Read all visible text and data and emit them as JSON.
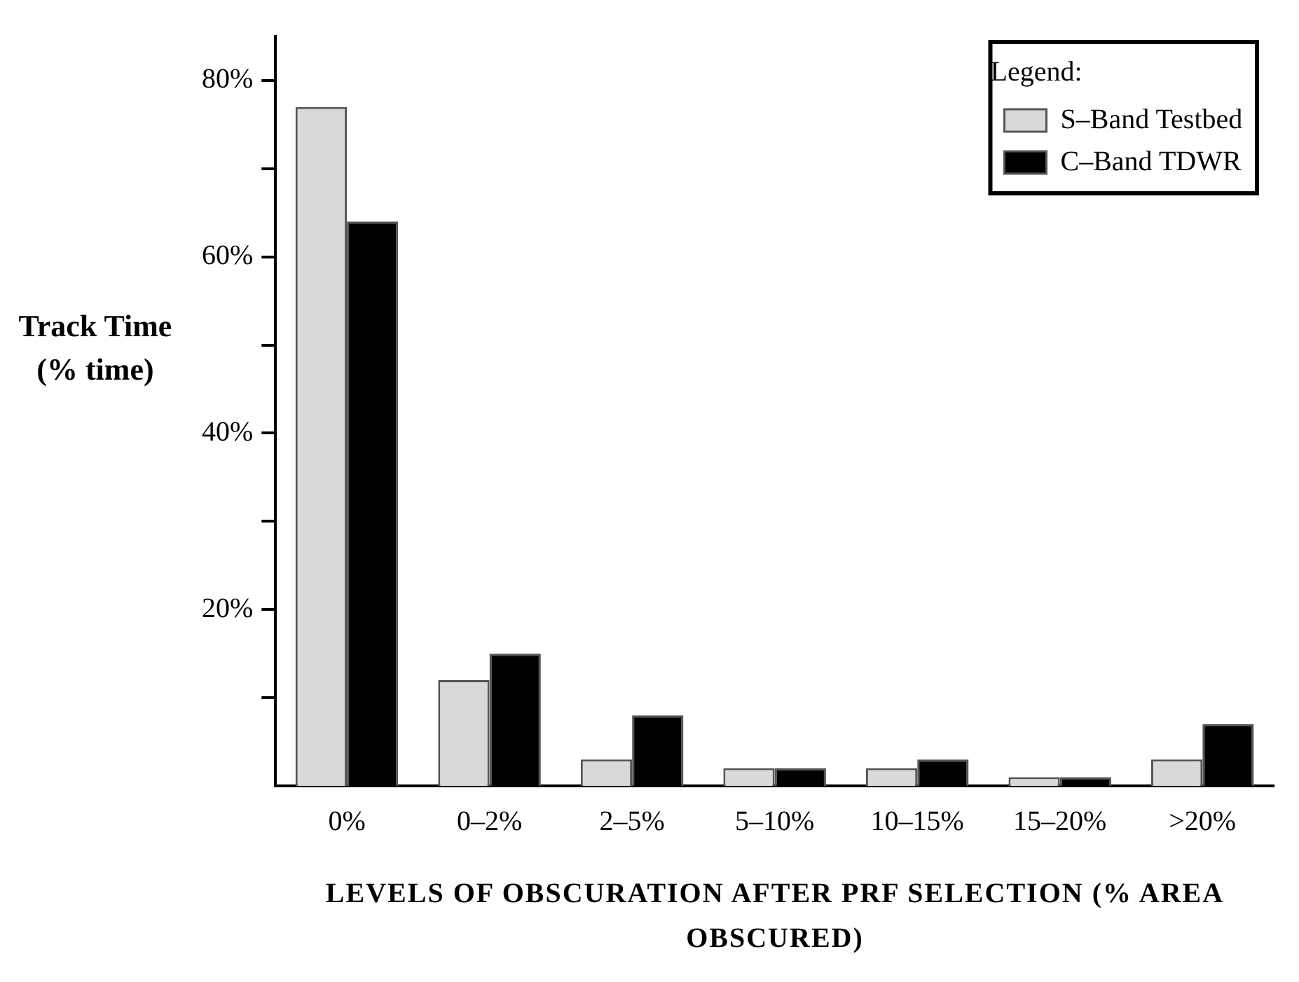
{
  "chart_data": {
    "type": "bar",
    "xlabel": "LEVELS OF OBSCURATION AFTER PRF SELECTION (% AREA OBSCURED)",
    "ylabel": "Track Time (% time)",
    "legend_title": "Legend:",
    "categories": [
      "0%",
      "0–2%",
      "2–5%",
      "5–10%",
      "10–15%",
      "15–20%",
      ">20%"
    ],
    "series": [
      {
        "name": "S–Band Testbed",
        "color": "#d9d9d9",
        "values": [
          77,
          12,
          3,
          2,
          2,
          1,
          3
        ]
      },
      {
        "name": "C–Band TDWR",
        "color": "#000000",
        "values": [
          64,
          15,
          8,
          2,
          3,
          1,
          7
        ]
      }
    ],
    "ylim": [
      0,
      85
    ],
    "yticks": [
      {
        "value": 10,
        "label": null
      },
      {
        "value": 20,
        "label": "20%"
      },
      {
        "value": 30,
        "label": null
      },
      {
        "value": 40,
        "label": "40%"
      },
      {
        "value": 50,
        "label": null
      },
      {
        "value": 60,
        "label": "60%"
      },
      {
        "value": 70,
        "label": null
      },
      {
        "value": 80,
        "label": "80%"
      }
    ],
    "grid": false,
    "legend": "top right"
  }
}
